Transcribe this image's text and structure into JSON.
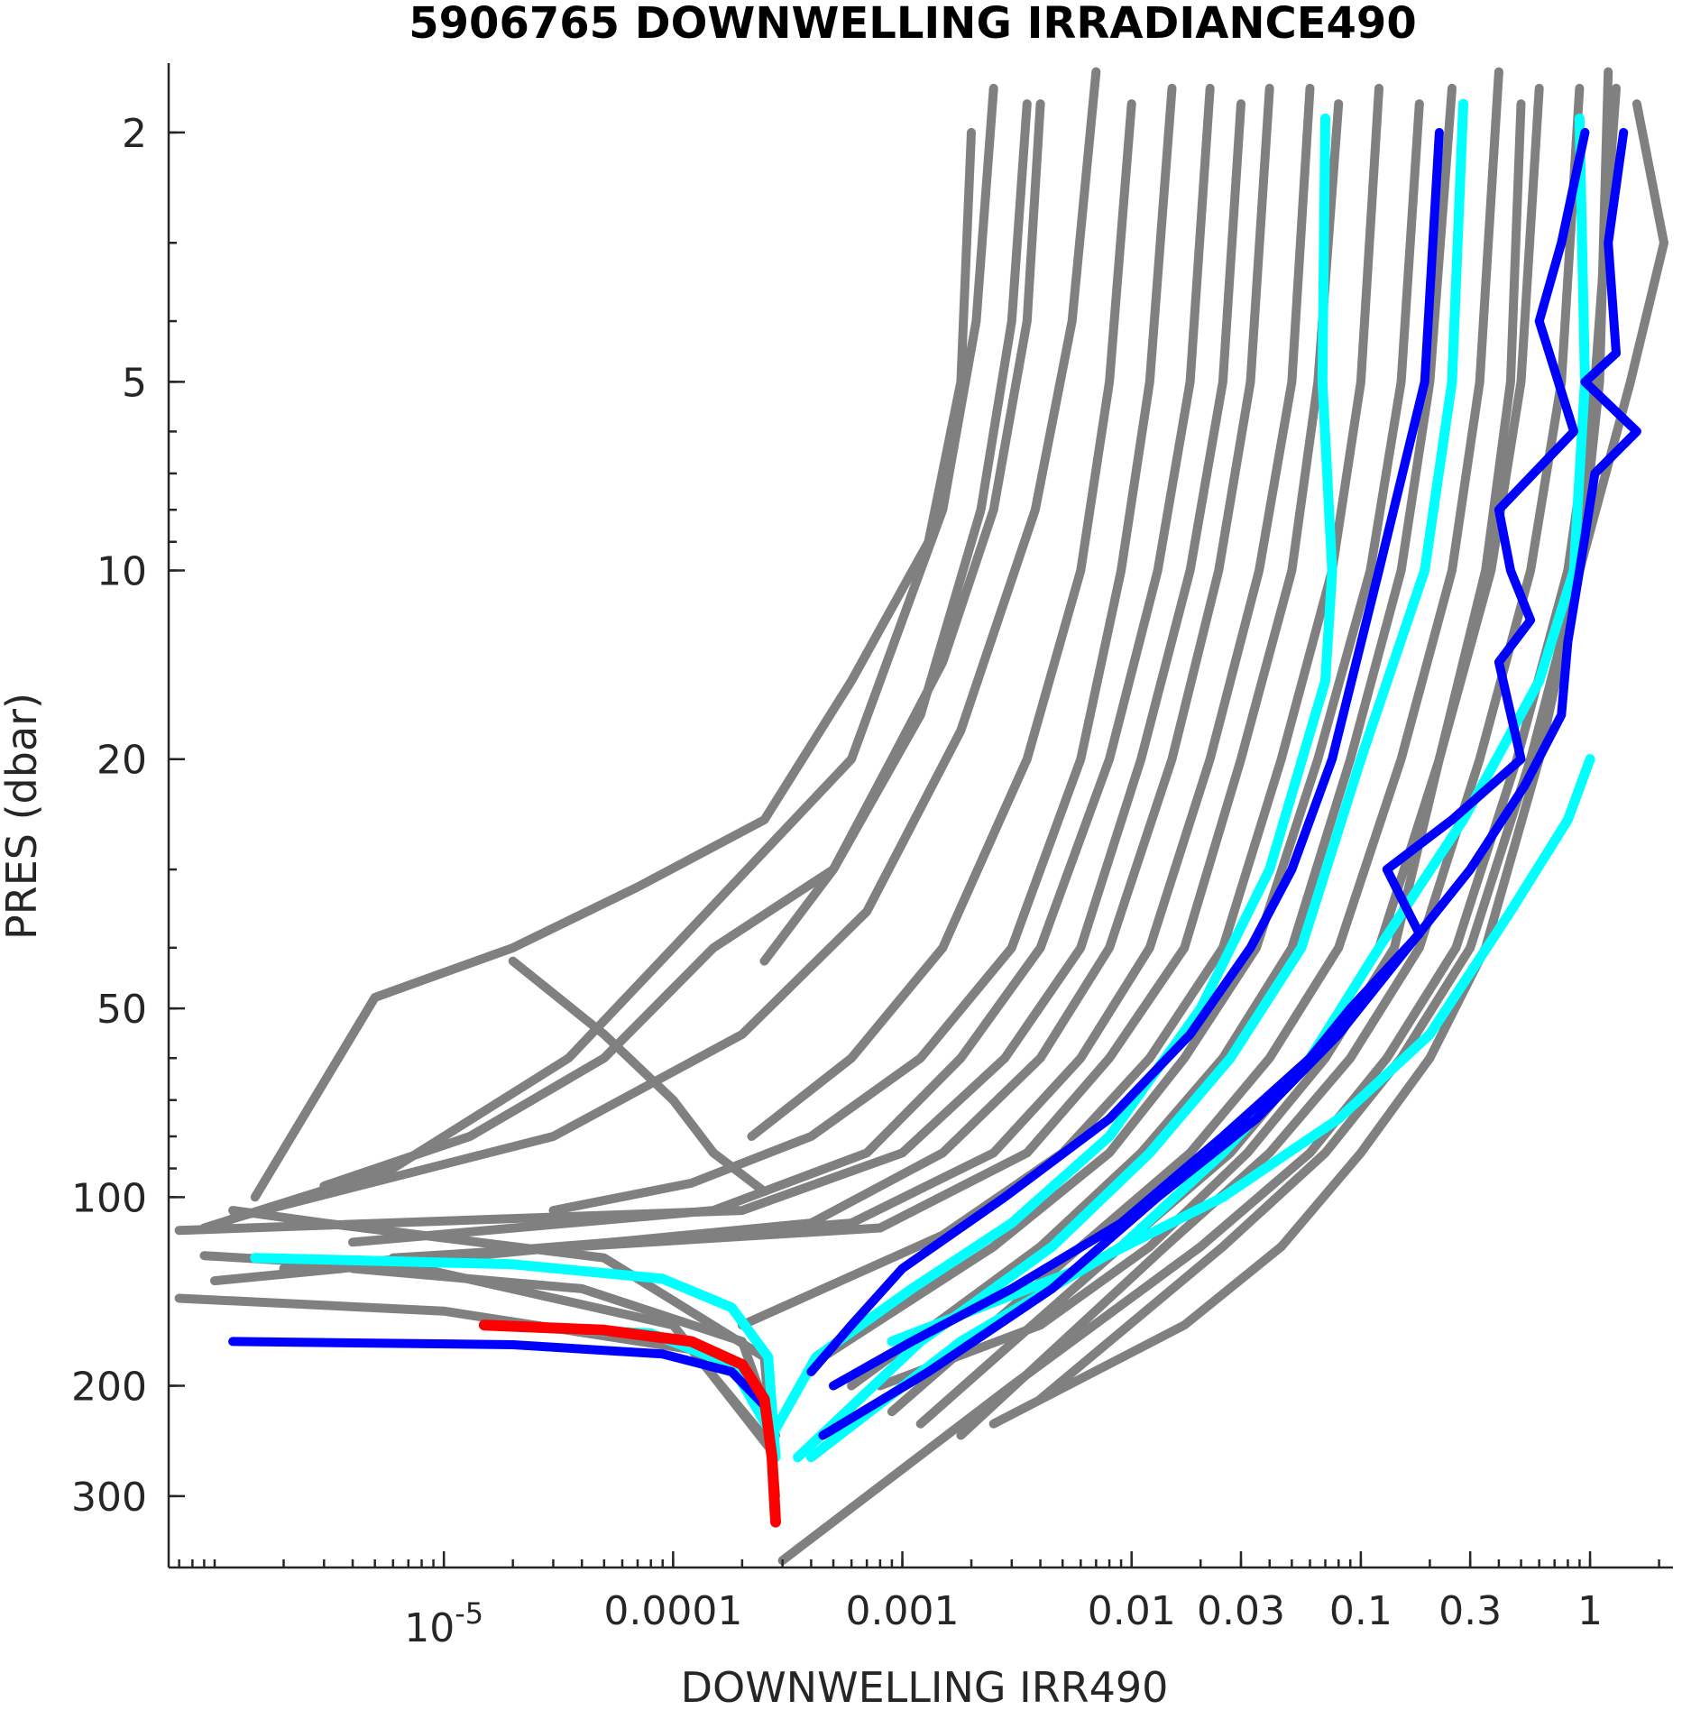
{
  "chart_data": {
    "type": "line",
    "title": "5906765  DOWNWELLING IRRADIANCE490",
    "xlabel": "DOWNWELLING IRR490",
    "ylabel": "PRES (dbar)",
    "xscale": "log",
    "yscale": "log",
    "y_reversed": true,
    "xlim": [
      6.3e-07,
      2.3
    ],
    "ylim": [
      1.55,
      390
    ],
    "grid": false,
    "xticks": [
      {
        "value": 1e-05,
        "base": "10",
        "exp": "-5"
      },
      {
        "value": 0.0001,
        "label": "0.0001"
      },
      {
        "value": 0.001,
        "label": "0.001"
      },
      {
        "value": 0.01,
        "label": "0.01"
      },
      {
        "value": 0.03,
        "label": "0.03"
      },
      {
        "value": 0.1,
        "label": "0.1"
      },
      {
        "value": 0.3,
        "label": "0.3"
      },
      {
        "value": 1,
        "label": "1"
      }
    ],
    "yticks": [
      {
        "value": 2,
        "label": "2"
      },
      {
        "value": 5,
        "label": "5"
      },
      {
        "value": 10,
        "label": "10"
      },
      {
        "value": 20,
        "label": "20"
      },
      {
        "value": 50,
        "label": "50"
      },
      {
        "value": 100,
        "label": "100"
      },
      {
        "value": 200,
        "label": "200"
      },
      {
        "value": 300,
        "label": "300"
      }
    ],
    "series_colors": {
      "gray": "#808080",
      "cyan": "#00ffff",
      "blue": "#0000ff",
      "red": "#ff0000"
    },
    "series": [
      {
        "color": "gray",
        "x": [
          0.0025,
          0.0021,
          0.0015,
          0.0006,
          0.0001,
          3.5e-05,
          6e-06,
          9e-07
        ],
        "y": [
          1.7,
          4,
          8,
          20,
          40,
          60,
          90,
          112
        ]
      },
      {
        "color": "gray",
        "x": [
          0.007,
          0.0055,
          0.0038,
          0.0018,
          0.0007,
          0.0002,
          3e-05,
          1.2e-06
        ],
        "y": [
          1.6,
          4,
          8,
          18,
          35,
          55,
          80,
          108
        ]
      },
      {
        "color": "gray",
        "x": [
          0.0035,
          0.003,
          0.0022,
          0.0012,
          0.0005,
          0.00015,
          5e-05,
          1.3e-05,
          3e-06
        ],
        "y": [
          1.8,
          4,
          8,
          17,
          30,
          40,
          60,
          80,
          96
        ]
      },
      {
        "color": "gray",
        "x": [
          0.002,
          0.0018,
          0.0013,
          0.0006,
          0.00025,
          7e-05,
          2e-05,
          5e-06,
          1.5e-06
        ],
        "y": [
          2,
          5,
          9,
          15,
          25,
          32,
          40,
          48,
          100
        ]
      },
      {
        "color": "gray",
        "x": [
          0.015,
          0.012,
          0.009,
          0.006,
          0.003,
          0.0012,
          0.0004,
          0.00012,
          3e-05
        ],
        "y": [
          1.7,
          5,
          10,
          20,
          40,
          60,
          80,
          95,
          105
        ]
      },
      {
        "color": "gray",
        "x": [
          0.01,
          0.008,
          0.006,
          0.0035,
          0.0015,
          0.0006,
          0.00022
        ],
        "y": [
          1.8,
          5,
          10,
          20,
          40,
          60,
          80
        ]
      },
      {
        "color": "gray",
        "x": [
          0.004,
          0.0035,
          0.0025,
          0.0015,
          0.0009,
          0.0005,
          0.00025
        ],
        "y": [
          1.8,
          4,
          8,
          14,
          20,
          30,
          42
        ]
      },
      {
        "color": "gray",
        "x": [
          2e-05,
          5e-05,
          0.0001,
          0.00015,
          0.00025
        ],
        "y": [
          42,
          55,
          70,
          85,
          98
        ]
      },
      {
        "color": "gray",
        "x": [
          0.022,
          0.018,
          0.013,
          0.008,
          0.004,
          0.0018,
          0.0007,
          0.00015,
          4e-06
        ],
        "y": [
          1.7,
          5,
          10,
          20,
          40,
          60,
          85,
          105,
          118
        ]
      },
      {
        "color": "gray",
        "x": [
          0.03,
          0.025,
          0.018,
          0.011,
          0.006,
          0.0028,
          0.001,
          0.0002,
          7e-07
        ],
        "y": [
          1.8,
          5,
          10,
          20,
          40,
          60,
          85,
          105,
          113
        ]
      },
      {
        "color": "gray",
        "x": [
          0.04,
          0.033,
          0.024,
          0.015,
          0.008,
          0.004,
          0.0015,
          0.0004,
          1e-06
        ],
        "y": [
          1.7,
          5,
          10,
          20,
          40,
          60,
          85,
          110,
          136
        ]
      },
      {
        "color": "gray",
        "x": [
          0.06,
          0.05,
          0.036,
          0.022,
          0.012,
          0.006,
          0.0025,
          0.0006,
          2e-06
        ],
        "y": [
          1.7,
          5,
          10,
          20,
          40,
          60,
          85,
          110,
          130
        ]
      },
      {
        "color": "gray",
        "x": [
          0.08,
          0.065,
          0.05,
          0.03,
          0.017,
          0.008,
          0.0035,
          0.0008,
          6e-06
        ],
        "y": [
          1.8,
          5,
          10,
          20,
          40,
          60,
          85,
          112,
          125
        ]
      },
      {
        "color": "gray",
        "x": [
          0.12,
          0.1,
          0.075,
          0.045,
          0.025,
          0.012,
          0.005,
          0.0015,
          0.0002
        ],
        "y": [
          1.7,
          5,
          10,
          20,
          40,
          60,
          85,
          115,
          160
        ]
      },
      {
        "color": "gray",
        "x": [
          0.18,
          0.15,
          0.11,
          0.065,
          0.035,
          0.017,
          0.008,
          0.0025,
          0.00045
        ],
        "y": [
          1.8,
          5,
          10,
          20,
          40,
          60,
          85,
          120,
          180
        ]
      },
      {
        "color": "gray",
        "x": [
          0.25,
          0.2,
          0.15,
          0.09,
          0.05,
          0.025,
          0.011,
          0.004,
          0.0006
        ],
        "y": [
          1.7,
          5,
          10,
          20,
          40,
          60,
          85,
          120,
          200
        ]
      },
      {
        "color": "gray",
        "x": [
          0.4,
          0.33,
          0.25,
          0.15,
          0.08,
          0.04,
          0.018,
          0.006,
          0.0009
        ],
        "y": [
          1.6,
          5,
          10,
          20,
          40,
          60,
          85,
          120,
          220
        ]
      },
      {
        "color": "gray",
        "x": [
          0.6,
          0.5,
          0.37,
          0.22,
          0.12,
          0.06,
          0.027,
          0.009,
          0.0012
        ],
        "y": [
          1.7,
          5,
          10,
          20,
          40,
          60,
          85,
          120,
          230
        ]
      },
      {
        "color": "gray",
        "x": [
          0.9,
          0.75,
          0.55,
          0.33,
          0.18,
          0.09,
          0.04,
          0.014,
          0.0018
        ],
        "y": [
          1.7,
          5,
          10,
          20,
          40,
          60,
          85,
          120,
          240
        ]
      },
      {
        "color": "gray",
        "x": [
          1.3,
          1.05,
          0.8,
          0.48,
          0.26,
          0.13,
          0.06,
          0.02,
          0.003,
          0.0003
        ],
        "y": [
          1.7,
          5,
          10,
          20,
          40,
          60,
          85,
          120,
          200,
          380
        ]
      },
      {
        "color": "gray",
        "x": [
          1.6,
          2.1,
          1.5,
          0.9,
          0.55,
          0.3,
          0.15,
          0.07,
          0.025,
          0.004
        ],
        "y": [
          1.8,
          3,
          5,
          10,
          20,
          40,
          60,
          85,
          120,
          210
        ]
      },
      {
        "color": "gray",
        "x": [
          1.2,
          1.1,
          0.9,
          0.6,
          0.35,
          0.2,
          0.1,
          0.045,
          0.017,
          0.0025
        ],
        "y": [
          1.6,
          5,
          10,
          20,
          40,
          60,
          85,
          120,
          160,
          230
        ]
      },
      {
        "color": "gray",
        "x": [
          0.5,
          0.45,
          0.35,
          0.22,
          0.14,
          0.07,
          0.032,
          0.012,
          0.004,
          0.0008
        ],
        "y": [
          1.8,
          5,
          10,
          20,
          40,
          60,
          85,
          120,
          160,
          200
        ]
      },
      {
        "color": "gray",
        "x": [
          4e-06,
          4e-05,
          0.0002,
          0.00028
        ],
        "y": [
          130,
          140,
          170,
          240
        ]
      },
      {
        "color": "gray",
        "x": [
          7e-07,
          1e-05,
          0.00012,
          0.00027
        ],
        "y": [
          145,
          152,
          175,
          250
        ]
      },
      {
        "color": "gray",
        "x": [
          9e-07,
          8e-06,
          0.0001,
          0.00026
        ],
        "y": [
          124,
          130,
          160,
          250
        ]
      },
      {
        "color": "gray",
        "x": [
          1.2e-06,
          3e-06,
          5e-05,
          0.00025,
          0.00028
        ],
        "y": [
          105,
          110,
          125,
          180,
          300
        ]
      },
      {
        "color": "cyan",
        "x": [
          0.07,
          0.068,
          0.075,
          0.07,
          0.04,
          0.02,
          0.008,
          0.003,
          0.0011,
          0.00042,
          0.00027
        ],
        "y": [
          1.9,
          5,
          10,
          15,
          30,
          50,
          80,
          110,
          140,
          180,
          240
        ]
      },
      {
        "color": "cyan",
        "x": [
          0.28,
          0.25,
          0.19,
          0.1,
          0.055,
          0.027,
          0.012,
          0.0045,
          0.0012,
          0.00035
        ],
        "y": [
          1.8,
          5,
          10,
          20,
          40,
          60,
          85,
          120,
          170,
          260
        ]
      },
      {
        "color": "cyan",
        "x": [
          0.9,
          0.95,
          0.85,
          0.6,
          0.28,
          0.12,
          0.06,
          0.025,
          0.009,
          0.0018,
          0.0004
        ],
        "y": [
          1.9,
          5,
          10,
          15,
          25,
          40,
          60,
          85,
          120,
          170,
          260
        ]
      },
      {
        "color": "cyan",
        "x": [
          1.0,
          0.8,
          0.45,
          0.2,
          0.08,
          0.025,
          0.006,
          0.0009
        ],
        "y": [
          20,
          25,
          35,
          55,
          75,
          100,
          130,
          170
        ]
      },
      {
        "color": "cyan",
        "x": [
          1.5e-06,
          2e-05,
          9e-05,
          0.00018,
          0.00026,
          0.00028
        ],
        "y": [
          125,
          128,
          135,
          150,
          180,
          260
        ]
      },
      {
        "color": "cyan",
        "x": [
          1.5e-05,
          8e-05,
          0.00018,
          0.00027
        ],
        "y": [
          160,
          165,
          185,
          240
        ]
      },
      {
        "color": "blue",
        "x": [
          0.22,
          0.19,
          0.12,
          0.075,
          0.05,
          0.033,
          0.018,
          0.008,
          0.0028,
          0.001,
          0.0006,
          0.0004
        ],
        "y": [
          2,
          5,
          10,
          20,
          30,
          40,
          55,
          75,
          100,
          130,
          160,
          190
        ]
      },
      {
        "color": "blue",
        "x": [
          0.95,
          0.75,
          0.6,
          0.85,
          0.4,
          0.45,
          0.55,
          0.4,
          0.5,
          0.25,
          0.13,
          0.18,
          0.09,
          0.06,
          0.025,
          0.009,
          0.003,
          0.0011,
          0.0005
        ],
        "y": [
          2,
          3,
          4,
          6,
          8,
          10,
          12,
          14,
          20,
          25,
          30,
          38,
          50,
          60,
          80,
          110,
          140,
          170,
          200
        ]
      },
      {
        "color": "blue",
        "x": [
          1.4,
          1.2,
          1.3,
          0.95,
          1.6,
          1.05,
          0.9,
          0.8,
          0.75,
          0.52,
          0.3,
          0.16,
          0.08,
          0.035,
          0.013,
          0.0045,
          0.0013,
          0.00045
        ],
        "y": [
          2,
          3,
          4.5,
          5,
          6,
          7,
          10,
          13,
          17,
          22,
          30,
          40,
          55,
          75,
          100,
          140,
          190,
          240
        ]
      },
      {
        "color": "blue",
        "x": [
          1.2e-06,
          2e-05,
          9e-05,
          0.00018,
          0.00025,
          0.00027,
          0.00028
        ],
        "y": [
          170,
          172,
          178,
          190,
          215,
          260,
          330
        ]
      },
      {
        "color": "red",
        "x": [
          1.5e-05,
          5e-05,
          0.00012,
          0.0002,
          0.00025,
          0.00027,
          0.00028
        ],
        "y": [
          160,
          163,
          170,
          185,
          210,
          260,
          330
        ]
      }
    ]
  }
}
